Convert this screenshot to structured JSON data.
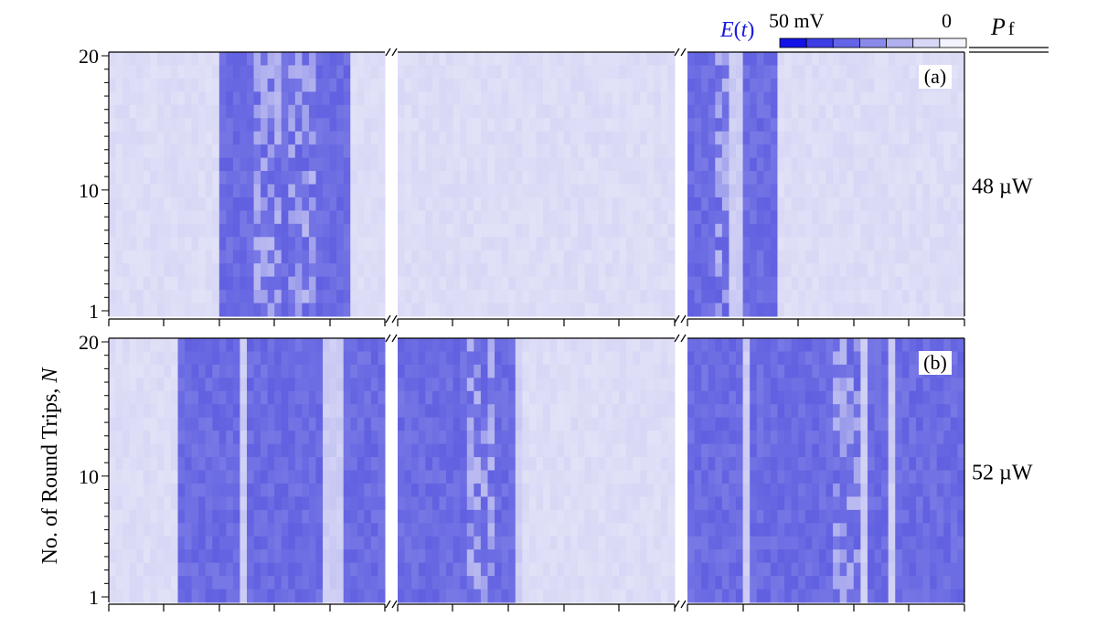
{
  "chart_data": {
    "type": "heatmap",
    "ylabel": "No. of Round Trips, N",
    "ylabel_parts": {
      "text": "No. of Round Trips, ",
      "var": "N"
    },
    "y_ticks": [
      "1",
      "10",
      "20"
    ],
    "y_range": [
      1,
      20
    ],
    "colorbar": {
      "title": "E(t)",
      "title_parts": {
        "var": "E",
        "open": "(",
        "arg": "t",
        "close": ")"
      },
      "max_label": "50 mV",
      "min_label": "0",
      "colors": [
        "#1212e6",
        "#3d3de6",
        "#6464e8",
        "#8a8aeb",
        "#b0b0f0",
        "#d8d8f6",
        "#f3f3fd"
      ]
    },
    "power_header": {
      "symbol": "P",
      "subscript": "f"
    },
    "color_low": "#e4e4f8",
    "color_high": "#5a5ae0",
    "panels": [
      {
        "tag": "(a)",
        "power": "48 µW",
        "segments": [
          {
            "bands": [
              [
                0.41,
                0.88
              ]
            ],
            "gaps": [],
            "spots": [
              0.55,
              0.6,
              0.67,
              0.72
            ]
          },
          {
            "bands": [],
            "gaps": [],
            "spots": []
          },
          {
            "bands": [
              [
                0.0,
                0.32
              ]
            ],
            "gaps": [
              [
                0.16,
                0.19
              ]
            ],
            "spots": [
              0.13
            ]
          }
        ]
      },
      {
        "tag": "(b)",
        "power": "52 µW",
        "segments": [
          {
            "bands": [
              [
                0.24,
                1.0
              ]
            ],
            "gaps": [
              [
                0.48,
                0.51
              ],
              [
                0.78,
                0.86
              ]
            ],
            "spots": []
          },
          {
            "bands": [
              [
                0.0,
                0.46
              ]
            ],
            "gaps": [
              [
                0.43,
                0.46
              ]
            ],
            "spots": [
              0.28,
              0.33
            ]
          },
          {
            "bands": [
              [
                0.0,
                0.99
              ]
            ],
            "gaps": [
              [
                0.2,
                0.22
              ],
              [
                0.34,
                0.36
              ],
              [
                0.63,
                0.65
              ],
              [
                0.72,
                0.74
              ]
            ],
            "spots": [
              0.55,
              0.6
            ]
          }
        ]
      }
    ]
  }
}
